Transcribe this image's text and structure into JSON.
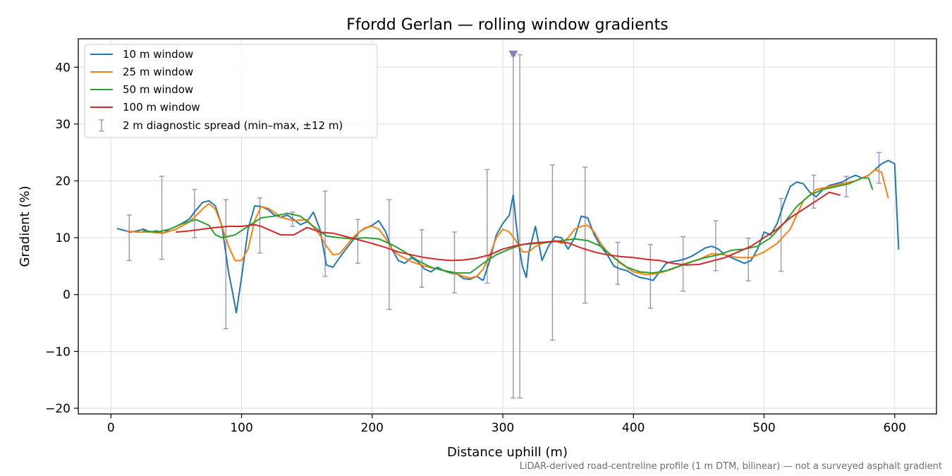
{
  "chart_data": {
    "type": "line",
    "title": "Ffordd Gerlan — rolling window gradients",
    "xlabel": "Distance uphill (m)",
    "ylabel": "Gradient (%)",
    "footnote": "LiDAR-derived road-centreline profile (1 m DTM, bilinear) — not a surveyed asphalt gradient",
    "xlim": [
      -25,
      632
    ],
    "ylim": [
      -21,
      45
    ],
    "x_ticks": [
      0,
      100,
      200,
      300,
      400,
      500,
      600
    ],
    "y_ticks": [
      -20,
      -10,
      0,
      10,
      20,
      30,
      40
    ],
    "grid": true,
    "legend_position": "top-left",
    "colors": {
      "10 m window": "#1f77b4",
      "25 m window": "#ff7f0e",
      "50 m window": "#2ca02c",
      "100 m window": "#d62728",
      "spread": "#9a92bf"
    },
    "series": [
      {
        "name": "10 m window",
        "x": [
          5,
          10,
          15,
          20,
          25,
          30,
          35,
          40,
          45,
          50,
          55,
          60,
          65,
          70,
          75,
          80,
          85,
          90,
          93,
          96,
          100,
          105,
          110,
          115,
          120,
          125,
          130,
          135,
          140,
          145,
          150,
          155,
          160,
          165,
          170,
          175,
          180,
          185,
          190,
          195,
          200,
          205,
          210,
          215,
          220,
          225,
          230,
          235,
          240,
          245,
          250,
          255,
          260,
          265,
          270,
          275,
          280,
          285,
          290,
          295,
          300,
          305,
          308,
          310,
          312,
          315,
          318,
          320,
          325,
          330,
          335,
          340,
          345,
          350,
          355,
          360,
          365,
          370,
          375,
          380,
          385,
          390,
          395,
          400,
          405,
          410,
          415,
          420,
          425,
          430,
          435,
          440,
          445,
          450,
          455,
          460,
          465,
          470,
          475,
          480,
          485,
          490,
          495,
          500,
          505,
          510,
          515,
          520,
          525,
          530,
          535,
          540,
          545,
          550,
          555,
          560,
          565,
          570,
          575,
          580,
          585,
          590,
          595,
          600,
          603
        ],
        "y": [
          11.6,
          11.3,
          11.0,
          11.2,
          11.5,
          11.0,
          11.2,
          10.8,
          11.5,
          12.0,
          12.6,
          13.3,
          14.8,
          16.2,
          16.5,
          15.6,
          12.0,
          4.0,
          0.5,
          -3.2,
          3.0,
          11.5,
          15.6,
          15.5,
          15.0,
          14.0,
          13.6,
          14.0,
          13.2,
          12.3,
          12.8,
          14.5,
          11.5,
          5.2,
          4.8,
          6.5,
          8.0,
          9.5,
          11.0,
          11.7,
          12.2,
          13.0,
          11.2,
          8.0,
          6.0,
          5.5,
          6.5,
          5.8,
          4.5,
          4.0,
          4.8,
          4.2,
          3.8,
          3.6,
          2.8,
          2.7,
          3.2,
          2.5,
          6.0,
          10.5,
          12.5,
          14.0,
          17.5,
          13.0,
          9.0,
          5.0,
          3.0,
          7.5,
          12.0,
          6.0,
          8.5,
          10.2,
          10.0,
          8.0,
          10.0,
          13.8,
          13.5,
          10.5,
          8.5,
          7.0,
          5.0,
          4.5,
          4.2,
          3.5,
          3.0,
          2.8,
          2.5,
          4.0,
          5.5,
          5.8,
          6.0,
          6.3,
          6.8,
          7.5,
          8.2,
          8.5,
          8.0,
          7.0,
          6.5,
          6.0,
          5.5,
          6.0,
          8.0,
          11.0,
          10.5,
          12.5,
          16.0,
          19.0,
          19.8,
          19.5,
          18.0,
          17.2,
          18.5,
          19.2,
          19.5,
          19.8,
          20.5,
          21.0,
          20.5,
          21.0,
          22.0,
          23.0,
          23.6,
          23.0,
          8.0
        ]
      },
      {
        "name": "25 m window",
        "x": [
          12,
          20,
          30,
          40,
          50,
          60,
          70,
          75,
          80,
          85,
          90,
          95,
          100,
          105,
          110,
          115,
          120,
          125,
          130,
          140,
          150,
          160,
          165,
          170,
          175,
          180,
          185,
          190,
          195,
          200,
          205,
          210,
          215,
          220,
          230,
          240,
          250,
          260,
          270,
          275,
          280,
          285,
          290,
          295,
          300,
          305,
          310,
          315,
          320,
          325,
          330,
          340,
          345,
          350,
          355,
          360,
          365,
          370,
          375,
          380,
          390,
          400,
          410,
          420,
          430,
          440,
          450,
          460,
          470,
          480,
          490,
          500,
          510,
          520,
          525,
          530,
          540,
          550,
          560,
          570,
          580,
          585,
          590,
          595
        ],
        "y": [
          11.2,
          11.0,
          11.0,
          10.8,
          11.5,
          12.8,
          15.0,
          16.0,
          15.0,
          12.0,
          8.5,
          6.0,
          6.0,
          8.0,
          13.0,
          15.5,
          15.2,
          14.5,
          13.6,
          13.0,
          13.2,
          10.5,
          8.5,
          7.0,
          7.2,
          8.5,
          10.0,
          11.0,
          11.8,
          12.0,
          11.5,
          10.0,
          8.0,
          7.0,
          5.8,
          5.0,
          4.5,
          4.0,
          3.2,
          2.9,
          3.2,
          4.5,
          7.0,
          10.0,
          11.5,
          11.0,
          9.5,
          7.5,
          7.5,
          8.5,
          9.0,
          9.5,
          9.0,
          10.0,
          11.5,
          12.0,
          12.2,
          11.0,
          9.0,
          7.5,
          5.5,
          4.0,
          3.5,
          3.8,
          4.5,
          5.5,
          6.2,
          7.2,
          7.0,
          6.5,
          6.5,
          7.5,
          9.0,
          11.5,
          14.0,
          16.5,
          18.5,
          19.0,
          19.5,
          20.0,
          21.0,
          22.0,
          21.5,
          17.0
        ]
      },
      {
        "name": "50 m window",
        "x": [
          25,
          35,
          45,
          55,
          65,
          75,
          80,
          85,
          95,
          105,
          115,
          125,
          135,
          145,
          155,
          165,
          175,
          185,
          195,
          205,
          215,
          225,
          235,
          245,
          255,
          265,
          275,
          285,
          295,
          305,
          315,
          325,
          335,
          345,
          355,
          365,
          375,
          385,
          395,
          405,
          415,
          425,
          435,
          445,
          455,
          465,
          475,
          485,
          495,
          505,
          515,
          525,
          535,
          545,
          555,
          565,
          575,
          580,
          583
        ],
        "y": [
          11.2,
          11.0,
          11.5,
          12.5,
          13.2,
          12.2,
          10.5,
          10.0,
          10.5,
          12.0,
          13.5,
          13.8,
          14.3,
          13.8,
          12.0,
          10.3,
          10.0,
          9.8,
          10.0,
          9.8,
          8.8,
          7.5,
          6.0,
          4.8,
          4.2,
          3.8,
          3.8,
          5.5,
          7.0,
          8.0,
          8.8,
          9.0,
          9.2,
          9.5,
          9.8,
          9.5,
          8.5,
          6.5,
          4.8,
          4.0,
          3.8,
          4.2,
          5.0,
          5.8,
          6.5,
          7.0,
          7.8,
          8.0,
          8.5,
          10.0,
          12.5,
          15.5,
          17.5,
          18.5,
          19.0,
          19.5,
          20.5,
          20.5,
          18.5
        ]
      },
      {
        "name": "100 m window",
        "x": [
          50,
          60,
          70,
          80,
          90,
          100,
          110,
          115,
          120,
          130,
          140,
          150,
          160,
          170,
          180,
          190,
          200,
          210,
          220,
          230,
          240,
          250,
          260,
          270,
          280,
          290,
          300,
          310,
          320,
          330,
          340,
          350,
          360,
          370,
          380,
          390,
          400,
          410,
          420,
          430,
          440,
          450,
          460,
          470,
          480,
          490,
          500,
          510,
          520,
          530,
          540,
          550,
          558
        ],
        "y": [
          11.0,
          11.2,
          11.5,
          11.8,
          12.0,
          12.0,
          12.3,
          12.0,
          11.5,
          10.5,
          10.5,
          11.8,
          11.0,
          10.8,
          10.2,
          9.6,
          9.0,
          8.3,
          7.5,
          7.0,
          6.5,
          6.2,
          6.0,
          6.1,
          6.4,
          7.0,
          8.0,
          8.6,
          9.0,
          9.2,
          9.4,
          9.1,
          8.2,
          7.5,
          7.0,
          6.7,
          6.5,
          6.2,
          6.0,
          5.5,
          5.2,
          5.3,
          5.9,
          6.5,
          7.5,
          8.5,
          10.0,
          11.5,
          13.5,
          15.0,
          16.5,
          18.0,
          17.5
        ]
      }
    ],
    "errorbars": {
      "name": "2 m diagnostic spread (min–max, ±12 m)",
      "x": [
        14,
        39,
        64,
        88,
        114,
        139,
        164,
        189,
        213,
        238,
        263,
        288,
        308,
        313,
        338,
        363,
        388,
        413,
        438,
        463,
        488,
        513,
        538,
        563,
        588
      ],
      "low": [
        6.0,
        6.2,
        10.0,
        -6.0,
        7.3,
        12.0,
        3.2,
        5.5,
        -2.6,
        1.3,
        0.3,
        2.0,
        -18.2,
        -18.2,
        -8.0,
        -1.5,
        1.8,
        -2.4,
        0.6,
        4.2,
        2.4,
        4.1,
        15.2,
        17.2,
        19.6
      ],
      "high": [
        14.0,
        20.8,
        18.5,
        16.7,
        17.0,
        14.5,
        18.2,
        13.2,
        16.7,
        11.4,
        11.0,
        22.0,
        42.0,
        42.2,
        22.8,
        22.4,
        9.2,
        8.8,
        10.2,
        13.0,
        9.9,
        16.9,
        21.0,
        20.8,
        25.0
      ]
    },
    "clip_marker": {
      "x": 308,
      "y": 42.3
    }
  }
}
